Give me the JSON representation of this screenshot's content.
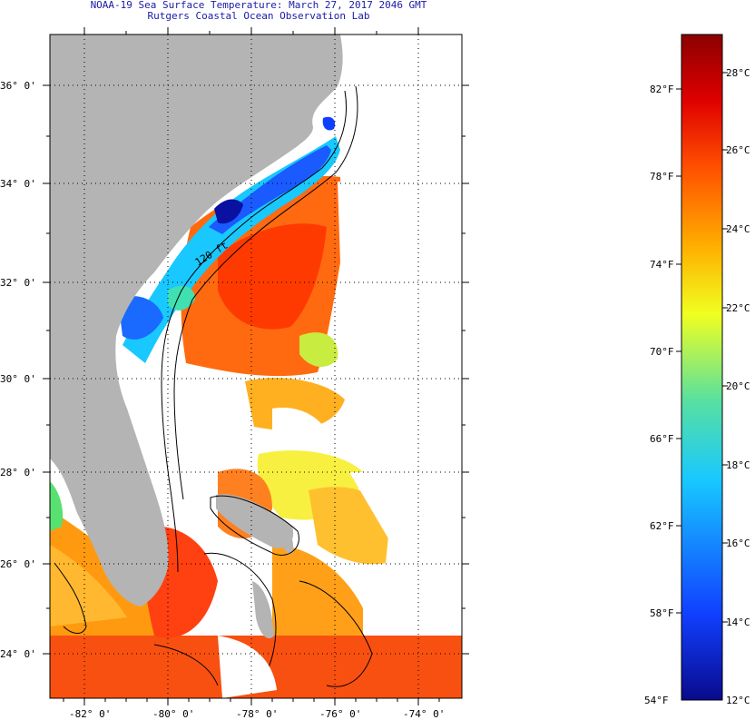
{
  "header": {
    "line1": "NOAA-19 Sea Surface Temperature:  March 27, 2017 2046 GMT",
    "line2": "Rutgers Coastal Ocean Observation Lab"
  },
  "map": {
    "lat_labels": [
      "36° 0'",
      "34° 0'",
      "32° 0'",
      "30° 0'",
      "28° 0'",
      "26° 0'",
      "24° 0'"
    ],
    "lon_labels": [
      "-82° 0'",
      "-80° 0'",
      "-78° 0'",
      "-76° 0'",
      "-74° 0'"
    ],
    "contour_label": "120 ft"
  },
  "colorbar": {
    "fahrenheit_labels": [
      "82°F",
      "78°F",
      "74°F",
      "70°F",
      "66°F",
      "62°F",
      "58°F",
      "54°F"
    ],
    "celsius_labels": [
      "28°C",
      "26°C",
      "24°C",
      "22°C",
      "20°C",
      "18°C",
      "16°C",
      "14°C",
      "12°C"
    ],
    "colors": [
      "#0a0a8c",
      "#1040ff",
      "#18c8ff",
      "#58e0a0",
      "#f0ff20",
      "#ffb000",
      "#ff5000",
      "#e00000",
      "#8b0000"
    ]
  }
}
